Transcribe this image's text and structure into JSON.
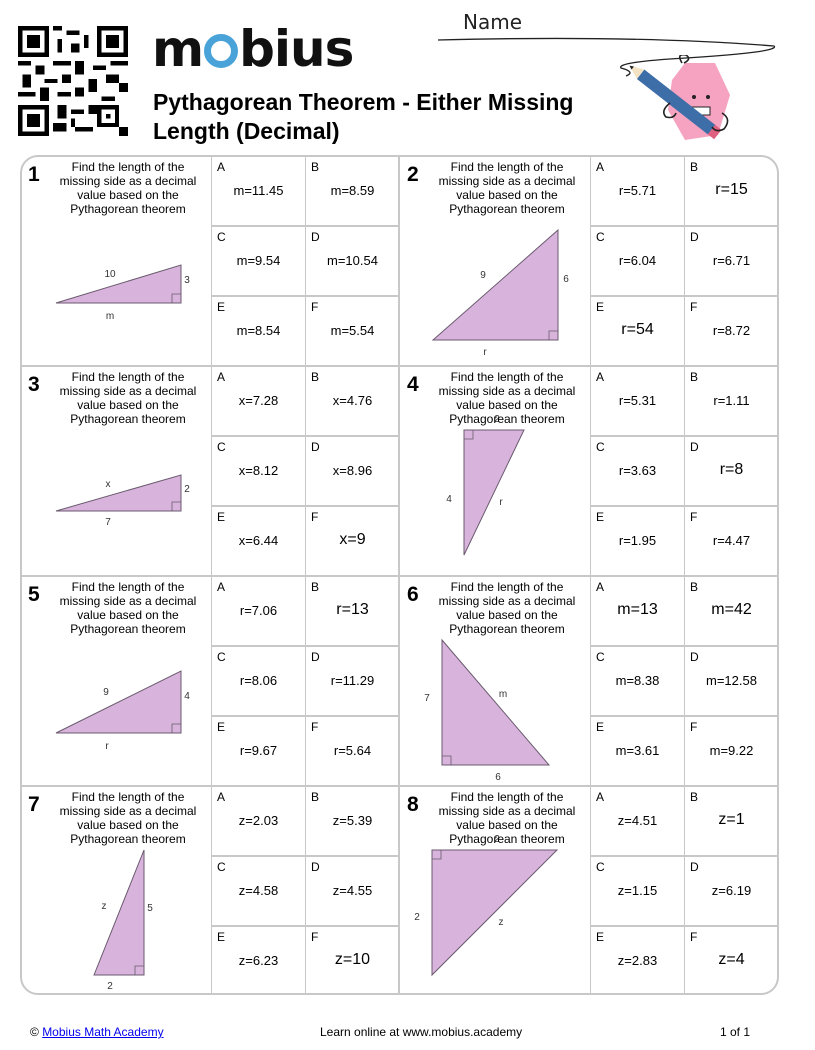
{
  "header": {
    "logo_text": "mobius",
    "title": "Pythagorean Theorem - Either Missing Length (Decimal)",
    "name_label": "Name",
    "brand_color": "#4aa3d8"
  },
  "problems": [
    {
      "number": "1",
      "prompt": "Find the length of the missing side as a decimal value based on the Pythagorean theorem",
      "triangle": {
        "labels": [
          "10",
          "3",
          "m"
        ]
      },
      "answers": [
        {
          "letter": "A",
          "value": "m=11.45"
        },
        {
          "letter": "B",
          "value": "m=8.59"
        },
        {
          "letter": "C",
          "value": "m=9.54"
        },
        {
          "letter": "D",
          "value": "m=10.54"
        },
        {
          "letter": "E",
          "value": "m=8.54"
        },
        {
          "letter": "F",
          "value": "m=5.54"
        }
      ]
    },
    {
      "number": "2",
      "prompt": "Find the length of the missing side as a decimal value based on the Pythagorean theorem",
      "triangle": {
        "labels": [
          "9",
          "6",
          "r"
        ]
      },
      "answers": [
        {
          "letter": "A",
          "value": "r=5.71"
        },
        {
          "letter": "B",
          "value": "r=15"
        },
        {
          "letter": "C",
          "value": "r=6.04"
        },
        {
          "letter": "D",
          "value": "r=6.71"
        },
        {
          "letter": "E",
          "value": "r=54"
        },
        {
          "letter": "F",
          "value": "r=8.72"
        }
      ]
    },
    {
      "number": "3",
      "prompt": "Find the length of the missing side as a decimal value based on the Pythagorean theorem",
      "triangle": {
        "labels": [
          "x",
          "2",
          "7"
        ]
      },
      "answers": [
        {
          "letter": "A",
          "value": "x=7.28"
        },
        {
          "letter": "B",
          "value": "x=4.76"
        },
        {
          "letter": "C",
          "value": "x=8.12"
        },
        {
          "letter": "D",
          "value": "x=8.96"
        },
        {
          "letter": "E",
          "value": "x=6.44"
        },
        {
          "letter": "F",
          "value": "x=9"
        }
      ]
    },
    {
      "number": "4",
      "prompt": "Find the length of the missing side as a decimal value based on the Pythagorean theorem",
      "triangle": {
        "labels": [
          "2",
          "4",
          "r"
        ]
      },
      "answers": [
        {
          "letter": "A",
          "value": "r=5.31"
        },
        {
          "letter": "B",
          "value": "r=1.11"
        },
        {
          "letter": "C",
          "value": "r=3.63"
        },
        {
          "letter": "D",
          "value": "r=8"
        },
        {
          "letter": "E",
          "value": "r=1.95"
        },
        {
          "letter": "F",
          "value": "r=4.47"
        }
      ]
    },
    {
      "number": "5",
      "prompt": "Find the length of the missing side as a decimal value based on the Pythagorean theorem",
      "triangle": {
        "labels": [
          "9",
          "4",
          "r"
        ]
      },
      "answers": [
        {
          "letter": "A",
          "value": "r=7.06"
        },
        {
          "letter": "B",
          "value": "r=13"
        },
        {
          "letter": "C",
          "value": "r=8.06"
        },
        {
          "letter": "D",
          "value": "r=11.29"
        },
        {
          "letter": "E",
          "value": "r=9.67"
        },
        {
          "letter": "F",
          "value": "r=5.64"
        }
      ]
    },
    {
      "number": "6",
      "prompt": "Find the length of the missing side as a decimal value based on the Pythagorean theorem",
      "triangle": {
        "labels": [
          "7",
          "m",
          "6"
        ]
      },
      "answers": [
        {
          "letter": "A",
          "value": "m=13"
        },
        {
          "letter": "B",
          "value": "m=42"
        },
        {
          "letter": "C",
          "value": "m=8.38"
        },
        {
          "letter": "D",
          "value": "m=12.58"
        },
        {
          "letter": "E",
          "value": "m=3.61"
        },
        {
          "letter": "F",
          "value": "m=9.22"
        }
      ]
    },
    {
      "number": "7",
      "prompt": "Find the length of the missing side as a decimal value based on the Pythagorean theorem",
      "triangle": {
        "labels": [
          "z",
          "5",
          "2"
        ]
      },
      "answers": [
        {
          "letter": "A",
          "value": "z=2.03"
        },
        {
          "letter": "B",
          "value": "z=5.39"
        },
        {
          "letter": "C",
          "value": "z=4.58"
        },
        {
          "letter": "D",
          "value": "z=4.55"
        },
        {
          "letter": "E",
          "value": "z=6.23"
        },
        {
          "letter": "F",
          "value": "z=10"
        }
      ]
    },
    {
      "number": "8",
      "prompt": "Find the length of the missing side as a decimal value based on the Pythagorean theorem",
      "triangle": {
        "labels": [
          "2",
          "2",
          "z"
        ]
      },
      "answers": [
        {
          "letter": "A",
          "value": "z=4.51"
        },
        {
          "letter": "B",
          "value": "z=1"
        },
        {
          "letter": "C",
          "value": "z=1.15"
        },
        {
          "letter": "D",
          "value": "z=6.19"
        },
        {
          "letter": "E",
          "value": "z=2.83"
        },
        {
          "letter": "F",
          "value": "z=4"
        }
      ]
    }
  ],
  "colors": {
    "triangle_fill": "#d8b4dc",
    "triangle_stroke": "#6a5a6e",
    "grid_border": "#c8c8c8"
  },
  "footer": {
    "copyright_symbol": "©",
    "copyright_link": "Mobius Math Academy",
    "center_text": "Learn online at www.mobius.academy",
    "page": "1 of 1"
  }
}
